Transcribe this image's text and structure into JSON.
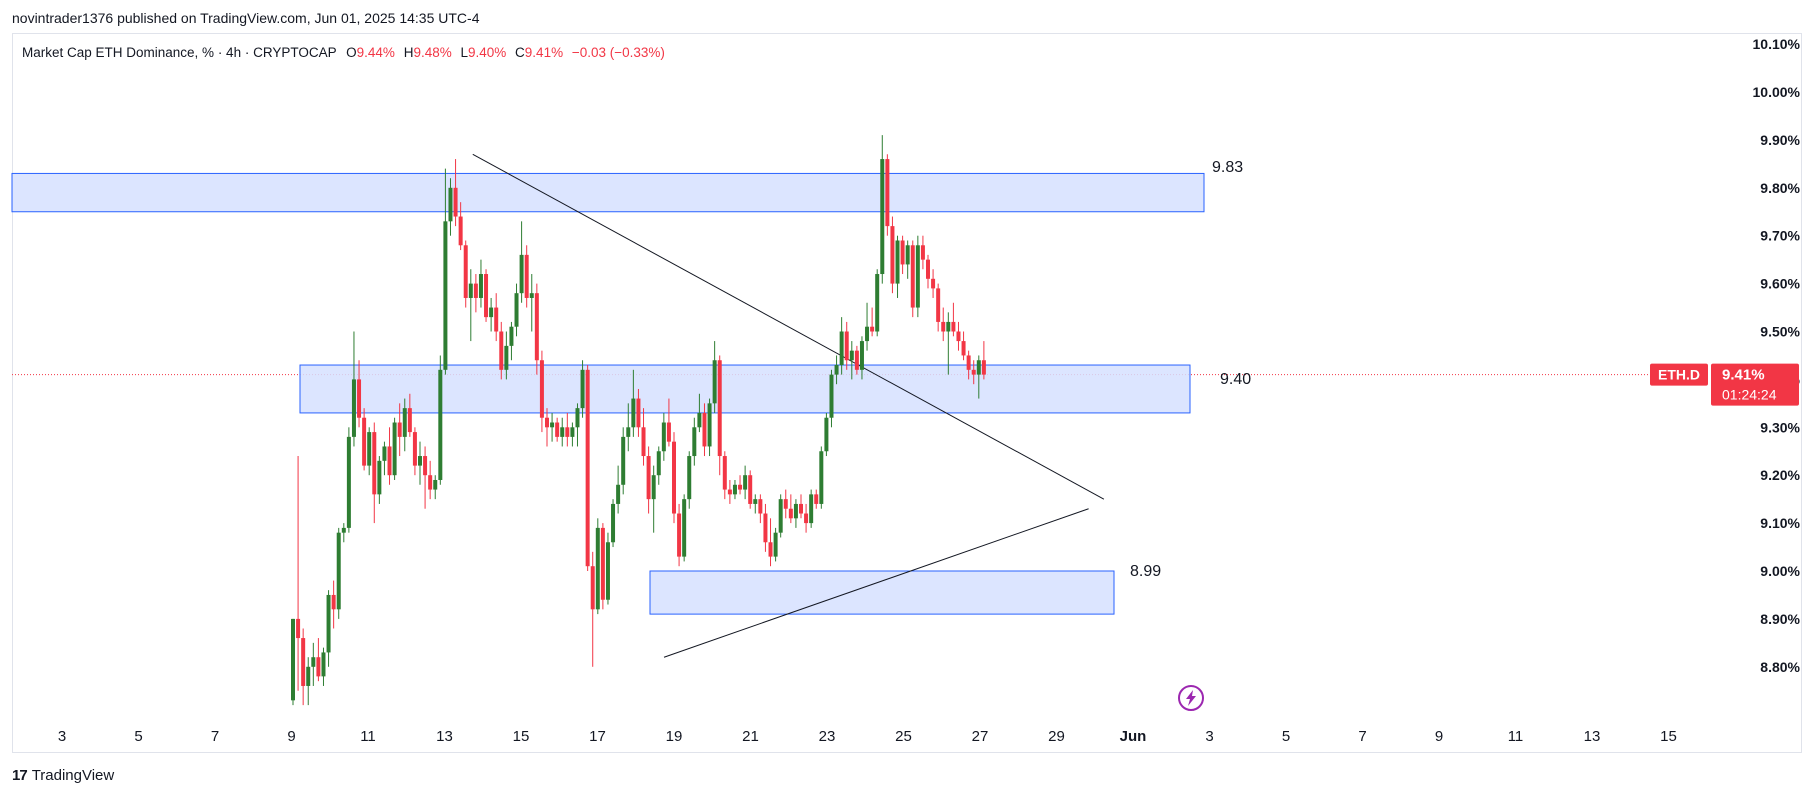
{
  "header": {
    "published": "novintrader1376 published on TradingView.com, Jun 01, 2025 14:35 UTC-4"
  },
  "legend": {
    "symbol": "Market Cap ETH Dominance, % · 4h · CRYPTOCAP",
    "o_label": "O",
    "o_value": "9.44%",
    "h_label": "H",
    "h_value": "9.48%",
    "l_label": "L",
    "l_value": "9.40%",
    "c_label": "C",
    "c_value": "9.41%",
    "change": "−0.03 (−0.33%)"
  },
  "price_badge": {
    "ticker": "ETH.D",
    "price": "9.41%",
    "countdown": "01:24:24"
  },
  "footer": {
    "brand": "TradingView",
    "logo": "17"
  },
  "colors": {
    "up": "#22ab94",
    "up_body": "#2e7d32",
    "down": "#f23645",
    "zone_fill": "#d6e0ff",
    "zone_border": "#2962ff",
    "badge": "#f23645",
    "lightning": "#9c27b0"
  },
  "chart_data": {
    "type": "candlestick",
    "timeframe": "4h",
    "ylim": [
      8.72,
      10.14
    ],
    "y_ticks": [
      8.8,
      8.9,
      9.0,
      9.1,
      9.2,
      9.3,
      9.4,
      9.5,
      9.6,
      9.7,
      9.8,
      9.9,
      10.0,
      10.1
    ],
    "y_tick_labels": [
      "8.80%",
      "8.90%",
      "9.00%",
      "9.10%",
      "9.20%",
      "9.30%",
      "9.40%",
      "9.50%",
      "9.60%",
      "9.70%",
      "9.80%",
      "9.90%",
      "10.00%",
      "10.10%"
    ],
    "x_ticks": [
      "3",
      "5",
      "7",
      "9",
      "11",
      "13",
      "15",
      "17",
      "19",
      "21",
      "23",
      "25",
      "27",
      "29",
      "Jun",
      "3",
      "5",
      "7",
      "9",
      "11",
      "13",
      "15"
    ],
    "current_price": 9.41,
    "zones": [
      {
        "label": "9.83",
        "from": 9.75,
        "to": 9.83
      },
      {
        "label": "9.40",
        "from": 9.33,
        "to": 9.43
      },
      {
        "label": "8.99",
        "from": 8.91,
        "to": 9.0
      }
    ],
    "trendlines": [
      {
        "name": "descending",
        "start": {
          "day": 13.7,
          "value": 9.87
        },
        "end": {
          "day": 30.2,
          "value": 9.15
        }
      },
      {
        "name": "ascending",
        "start": {
          "day": 18.7,
          "value": 8.82
        },
        "end": {
          "day": 29.8,
          "value": 9.13
        }
      }
    ],
    "candles": [
      {
        "o": 8.73,
        "h": 8.9,
        "l": 8.72,
        "c": 8.9
      },
      {
        "o": 8.9,
        "h": 9.24,
        "l": 8.75,
        "c": 8.86
      },
      {
        "o": 8.86,
        "h": 8.88,
        "l": 8.72,
        "c": 8.76
      },
      {
        "o": 8.76,
        "h": 8.82,
        "l": 8.72,
        "c": 8.8
      },
      {
        "o": 8.8,
        "h": 8.85,
        "l": 8.76,
        "c": 8.82
      },
      {
        "o": 8.82,
        "h": 8.86,
        "l": 8.77,
        "c": 8.78
      },
      {
        "o": 8.78,
        "h": 8.84,
        "l": 8.76,
        "c": 8.83
      },
      {
        "o": 8.83,
        "h": 8.96,
        "l": 8.8,
        "c": 8.95
      },
      {
        "o": 8.95,
        "h": 8.98,
        "l": 8.88,
        "c": 8.92
      },
      {
        "o": 8.92,
        "h": 9.09,
        "l": 8.9,
        "c": 9.08
      },
      {
        "o": 9.08,
        "h": 9.1,
        "l": 9.06,
        "c": 9.09
      },
      {
        "o": 9.09,
        "h": 9.3,
        "l": 9.08,
        "c": 9.28
      },
      {
        "o": 9.28,
        "h": 9.5,
        "l": 9.26,
        "c": 9.4
      },
      {
        "o": 9.4,
        "h": 9.44,
        "l": 9.3,
        "c": 9.32
      },
      {
        "o": 9.32,
        "h": 9.34,
        "l": 9.21,
        "c": 9.22
      },
      {
        "o": 9.22,
        "h": 9.3,
        "l": 9.2,
        "c": 9.29
      },
      {
        "o": 9.29,
        "h": 9.31,
        "l": 9.1,
        "c": 9.16
      },
      {
        "o": 9.16,
        "h": 9.24,
        "l": 9.14,
        "c": 9.23
      },
      {
        "o": 9.23,
        "h": 9.27,
        "l": 9.2,
        "c": 9.26
      },
      {
        "o": 9.26,
        "h": 9.3,
        "l": 9.18,
        "c": 9.2
      },
      {
        "o": 9.2,
        "h": 9.32,
        "l": 9.19,
        "c": 9.31
      },
      {
        "o": 9.31,
        "h": 9.35,
        "l": 9.24,
        "c": 9.28
      },
      {
        "o": 9.28,
        "h": 9.36,
        "l": 9.25,
        "c": 9.34
      },
      {
        "o": 9.34,
        "h": 9.37,
        "l": 9.28,
        "c": 9.29
      },
      {
        "o": 9.29,
        "h": 9.3,
        "l": 9.2,
        "c": 9.22
      },
      {
        "o": 9.22,
        "h": 9.27,
        "l": 9.18,
        "c": 9.24
      },
      {
        "o": 9.24,
        "h": 9.26,
        "l": 9.13,
        "c": 9.2
      },
      {
        "o": 9.2,
        "h": 9.23,
        "l": 9.15,
        "c": 9.17
      },
      {
        "o": 9.17,
        "h": 9.2,
        "l": 9.15,
        "c": 9.19
      },
      {
        "o": 9.19,
        "h": 9.45,
        "l": 9.18,
        "c": 9.42
      },
      {
        "o": 9.42,
        "h": 9.84,
        "l": 9.41,
        "c": 9.73
      },
      {
        "o": 9.73,
        "h": 9.82,
        "l": 9.7,
        "c": 9.8
      },
      {
        "o": 9.8,
        "h": 9.86,
        "l": 9.72,
        "c": 9.74
      },
      {
        "o": 9.74,
        "h": 9.77,
        "l": 9.67,
        "c": 9.68
      },
      {
        "o": 9.68,
        "h": 9.69,
        "l": 9.55,
        "c": 9.57
      },
      {
        "o": 9.57,
        "h": 9.63,
        "l": 9.48,
        "c": 9.6
      },
      {
        "o": 9.6,
        "h": 9.62,
        "l": 9.54,
        "c": 9.57
      },
      {
        "o": 9.57,
        "h": 9.65,
        "l": 9.55,
        "c": 9.62
      },
      {
        "o": 9.62,
        "h": 9.63,
        "l": 9.52,
        "c": 9.53
      },
      {
        "o": 9.53,
        "h": 9.57,
        "l": 9.5,
        "c": 9.55
      },
      {
        "o": 9.55,
        "h": 9.58,
        "l": 9.48,
        "c": 9.5
      },
      {
        "o": 9.5,
        "h": 9.52,
        "l": 9.4,
        "c": 9.42
      },
      {
        "o": 9.42,
        "h": 9.5,
        "l": 9.4,
        "c": 9.47
      },
      {
        "o": 9.47,
        "h": 9.52,
        "l": 9.44,
        "c": 9.51
      },
      {
        "o": 9.51,
        "h": 9.6,
        "l": 9.49,
        "c": 9.58
      },
      {
        "o": 9.58,
        "h": 9.73,
        "l": 9.56,
        "c": 9.66
      },
      {
        "o": 9.66,
        "h": 9.68,
        "l": 9.55,
        "c": 9.57
      },
      {
        "o": 9.57,
        "h": 9.62,
        "l": 9.5,
        "c": 9.58
      },
      {
        "o": 9.58,
        "h": 9.6,
        "l": 9.41,
        "c": 9.44
      },
      {
        "o": 9.44,
        "h": 9.46,
        "l": 9.29,
        "c": 9.32
      },
      {
        "o": 9.32,
        "h": 9.34,
        "l": 9.26,
        "c": 9.3
      },
      {
        "o": 9.3,
        "h": 9.33,
        "l": 9.27,
        "c": 9.31
      },
      {
        "o": 9.31,
        "h": 9.32,
        "l": 9.27,
        "c": 9.28
      },
      {
        "o": 9.28,
        "h": 9.32,
        "l": 9.26,
        "c": 9.3
      },
      {
        "o": 9.3,
        "h": 9.33,
        "l": 9.26,
        "c": 9.28
      },
      {
        "o": 9.28,
        "h": 9.31,
        "l": 9.26,
        "c": 9.3
      },
      {
        "o": 9.3,
        "h": 9.35,
        "l": 9.26,
        "c": 9.34
      },
      {
        "o": 9.34,
        "h": 9.44,
        "l": 9.32,
        "c": 9.42
      },
      {
        "o": 9.42,
        "h": 9.43,
        "l": 9.0,
        "c": 9.01
      },
      {
        "o": 9.01,
        "h": 9.04,
        "l": 8.8,
        "c": 8.92
      },
      {
        "o": 8.92,
        "h": 9.11,
        "l": 8.91,
        "c": 9.09
      },
      {
        "o": 9.09,
        "h": 9.1,
        "l": 8.92,
        "c": 8.94
      },
      {
        "o": 8.94,
        "h": 9.08,
        "l": 8.93,
        "c": 9.06
      },
      {
        "o": 9.06,
        "h": 9.15,
        "l": 9.05,
        "c": 9.14
      },
      {
        "o": 9.14,
        "h": 9.22,
        "l": 9.12,
        "c": 9.18
      },
      {
        "o": 9.18,
        "h": 9.3,
        "l": 9.16,
        "c": 9.28
      },
      {
        "o": 9.28,
        "h": 9.35,
        "l": 9.25,
        "c": 9.3
      },
      {
        "o": 9.3,
        "h": 9.42,
        "l": 9.28,
        "c": 9.36
      },
      {
        "o": 9.36,
        "h": 9.38,
        "l": 9.28,
        "c": 9.3
      },
      {
        "o": 9.3,
        "h": 9.34,
        "l": 9.22,
        "c": 9.24
      },
      {
        "o": 9.24,
        "h": 9.26,
        "l": 9.12,
        "c": 9.15
      },
      {
        "o": 9.15,
        "h": 9.22,
        "l": 9.08,
        "c": 9.2
      },
      {
        "o": 9.2,
        "h": 9.26,
        "l": 9.18,
        "c": 9.25
      },
      {
        "o": 9.25,
        "h": 9.33,
        "l": 9.23,
        "c": 9.31
      },
      {
        "o": 9.31,
        "h": 9.36,
        "l": 9.26,
        "c": 9.27
      },
      {
        "o": 9.27,
        "h": 9.29,
        "l": 9.1,
        "c": 9.12
      },
      {
        "o": 9.12,
        "h": 9.14,
        "l": 9.01,
        "c": 9.03
      },
      {
        "o": 9.03,
        "h": 9.16,
        "l": 9.02,
        "c": 9.15
      },
      {
        "o": 9.15,
        "h": 9.25,
        "l": 9.13,
        "c": 9.24
      },
      {
        "o": 9.24,
        "h": 9.32,
        "l": 9.22,
        "c": 9.3
      },
      {
        "o": 9.3,
        "h": 9.37,
        "l": 9.29,
        "c": 9.33
      },
      {
        "o": 9.33,
        "h": 9.35,
        "l": 9.24,
        "c": 9.26
      },
      {
        "o": 9.26,
        "h": 9.36,
        "l": 9.24,
        "c": 9.35
      },
      {
        "o": 9.35,
        "h": 9.48,
        "l": 9.33,
        "c": 9.44
      },
      {
        "o": 9.44,
        "h": 9.45,
        "l": 9.2,
        "c": 9.24
      },
      {
        "o": 9.24,
        "h": 9.25,
        "l": 9.15,
        "c": 9.17
      },
      {
        "o": 9.17,
        "h": 9.19,
        "l": 9.14,
        "c": 9.16
      },
      {
        "o": 9.16,
        "h": 9.19,
        "l": 9.15,
        "c": 9.18
      },
      {
        "o": 9.18,
        "h": 9.2,
        "l": 9.16,
        "c": 9.17
      },
      {
        "o": 9.17,
        "h": 9.22,
        "l": 9.15,
        "c": 9.2
      },
      {
        "o": 9.2,
        "h": 9.21,
        "l": 9.13,
        "c": 9.14
      },
      {
        "o": 9.14,
        "h": 9.16,
        "l": 9.12,
        "c": 9.15
      },
      {
        "o": 9.15,
        "h": 9.16,
        "l": 9.1,
        "c": 9.12
      },
      {
        "o": 9.12,
        "h": 9.14,
        "l": 9.04,
        "c": 9.06
      },
      {
        "o": 9.06,
        "h": 9.11,
        "l": 9.01,
        "c": 9.03
      },
      {
        "o": 9.03,
        "h": 9.09,
        "l": 9.02,
        "c": 9.08
      },
      {
        "o": 9.08,
        "h": 9.16,
        "l": 9.07,
        "c": 9.15
      },
      {
        "o": 9.15,
        "h": 9.17,
        "l": 9.11,
        "c": 9.13
      },
      {
        "o": 9.13,
        "h": 9.16,
        "l": 9.1,
        "c": 9.11
      },
      {
        "o": 9.11,
        "h": 9.15,
        "l": 9.09,
        "c": 9.14
      },
      {
        "o": 9.14,
        "h": 9.16,
        "l": 9.11,
        "c": 9.12
      },
      {
        "o": 9.12,
        "h": 9.14,
        "l": 9.08,
        "c": 9.1
      },
      {
        "o": 9.1,
        "h": 9.17,
        "l": 9.09,
        "c": 9.16
      },
      {
        "o": 9.16,
        "h": 9.17,
        "l": 9.13,
        "c": 9.14
      },
      {
        "o": 9.14,
        "h": 9.26,
        "l": 9.13,
        "c": 9.25
      },
      {
        "o": 9.25,
        "h": 9.33,
        "l": 9.24,
        "c": 9.32
      },
      {
        "o": 9.32,
        "h": 9.42,
        "l": 9.3,
        "c": 9.41
      },
      {
        "o": 9.41,
        "h": 9.45,
        "l": 9.39,
        "c": 9.43
      },
      {
        "o": 9.43,
        "h": 9.53,
        "l": 9.41,
        "c": 9.5
      },
      {
        "o": 9.5,
        "h": 9.52,
        "l": 9.42,
        "c": 9.44
      },
      {
        "o": 9.44,
        "h": 9.48,
        "l": 9.4,
        "c": 9.46
      },
      {
        "o": 9.46,
        "h": 9.47,
        "l": 9.41,
        "c": 9.42
      },
      {
        "o": 9.42,
        "h": 9.49,
        "l": 9.4,
        "c": 9.48
      },
      {
        "o": 9.48,
        "h": 9.56,
        "l": 9.46,
        "c": 9.51
      },
      {
        "o": 9.51,
        "h": 9.55,
        "l": 9.49,
        "c": 9.5
      },
      {
        "o": 9.5,
        "h": 9.63,
        "l": 9.49,
        "c": 9.62
      },
      {
        "o": 9.62,
        "h": 9.91,
        "l": 9.6,
        "c": 9.86
      },
      {
        "o": 9.86,
        "h": 9.87,
        "l": 9.7,
        "c": 9.72
      },
      {
        "o": 9.72,
        "h": 9.74,
        "l": 9.58,
        "c": 9.6
      },
      {
        "o": 9.6,
        "h": 9.7,
        "l": 9.57,
        "c": 9.69
      },
      {
        "o": 9.69,
        "h": 9.7,
        "l": 9.62,
        "c": 9.64
      },
      {
        "o": 9.64,
        "h": 9.69,
        "l": 9.61,
        "c": 9.68
      },
      {
        "o": 9.68,
        "h": 9.69,
        "l": 9.53,
        "c": 9.55
      },
      {
        "o": 9.55,
        "h": 9.7,
        "l": 9.53,
        "c": 9.68
      },
      {
        "o": 9.68,
        "h": 9.7,
        "l": 9.63,
        "c": 9.65
      },
      {
        "o": 9.65,
        "h": 9.66,
        "l": 9.59,
        "c": 9.61
      },
      {
        "o": 9.61,
        "h": 9.63,
        "l": 9.57,
        "c": 9.59
      },
      {
        "o": 9.59,
        "h": 9.6,
        "l": 9.5,
        "c": 9.52
      },
      {
        "o": 9.52,
        "h": 9.55,
        "l": 9.48,
        "c": 9.5
      },
      {
        "o": 9.5,
        "h": 9.54,
        "l": 9.41,
        "c": 9.52
      },
      {
        "o": 9.52,
        "h": 9.56,
        "l": 9.49,
        "c": 9.5
      },
      {
        "o": 9.5,
        "h": 9.52,
        "l": 9.46,
        "c": 9.48
      },
      {
        "o": 9.48,
        "h": 9.5,
        "l": 9.44,
        "c": 9.45
      },
      {
        "o": 9.45,
        "h": 9.46,
        "l": 9.4,
        "c": 9.42
      },
      {
        "o": 9.42,
        "h": 9.44,
        "l": 9.39,
        "c": 9.41
      },
      {
        "o": 9.41,
        "h": 9.45,
        "l": 9.36,
        "c": 9.44
      },
      {
        "o": 9.44,
        "h": 9.48,
        "l": 9.4,
        "c": 9.41
      }
    ]
  }
}
